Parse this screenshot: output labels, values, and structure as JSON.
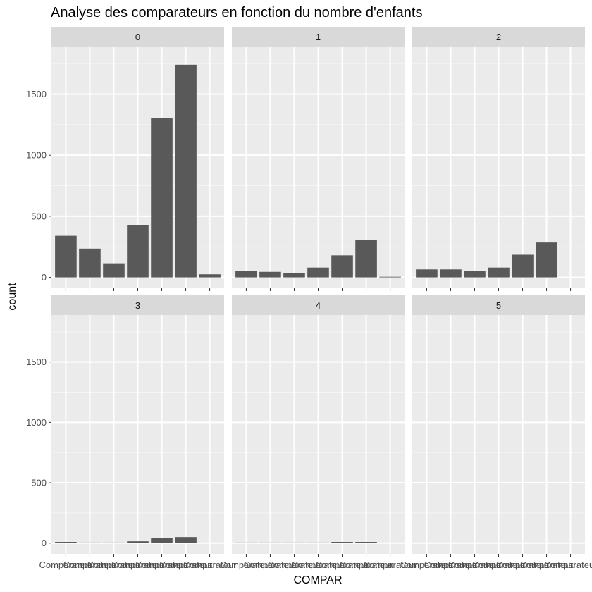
{
  "chart_data": {
    "type": "bar",
    "title": "Analyse des comparateurs en fonction du nombre d'enfants",
    "xlabel": "COMPAR",
    "ylabel": "count",
    "ylim": [
      0,
      1800
    ],
    "yticks": [
      0,
      500,
      1000,
      1500
    ],
    "x_tick_labels": [
      "Comparateur",
      "Comparateur",
      "Comparateur",
      "Comparateur",
      "Comparateur",
      "Comparateur",
      "Comparateur"
    ],
    "facet_variable_values": [
      "0",
      "1",
      "2",
      "3",
      "4",
      "5"
    ],
    "facet_layout": {
      "rows": 2,
      "cols": 3
    },
    "grid": true,
    "colors": {
      "bar": "#595959",
      "panel_bg": "#ebebeb",
      "strip_bg": "#d9d9d9",
      "grid_major": "#ffffff",
      "grid_minor": "#f5f5f5",
      "tick": "#333333",
      "tick_label": "#4d4d4d"
    },
    "panels": [
      {
        "facet": "0",
        "values": [
          340,
          235,
          115,
          430,
          1305,
          1740,
          25
        ]
      },
      {
        "facet": "1",
        "values": [
          55,
          45,
          35,
          80,
          180,
          305,
          5
        ]
      },
      {
        "facet": "2",
        "values": [
          65,
          65,
          50,
          80,
          185,
          285,
          0
        ]
      },
      {
        "facet": "3",
        "values": [
          10,
          5,
          5,
          15,
          40,
          50,
          0
        ]
      },
      {
        "facet": "4",
        "values": [
          5,
          5,
          5,
          5,
          10,
          10,
          0
        ]
      },
      {
        "facet": "5",
        "values": [
          0,
          0,
          0,
          0,
          0,
          0,
          0
        ]
      }
    ]
  }
}
